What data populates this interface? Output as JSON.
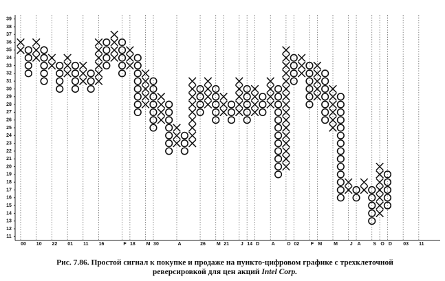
{
  "chart_data": {
    "type": "point-and-figure",
    "caption": {
      "line1": "Рис. 7.86. Простой сигнал к покупке и продаже на пункто-цифровом графике с трехклеточной",
      "line2": "реверсировкой для цен акций",
      "line2_italic": "Intel Corp."
    },
    "ylim": [
      10.5,
      39.5
    ],
    "yticks": [
      11,
      12,
      13,
      14,
      15,
      16,
      17,
      18,
      19,
      20,
      21,
      22,
      23,
      24,
      25,
      26,
      27,
      28,
      29,
      30,
      31,
      32,
      33,
      34,
      35,
      36,
      37,
      38,
      39
    ],
    "categories": [
      "00",
      null,
      "10",
      null,
      "22",
      null,
      "01",
      null,
      "11",
      null,
      "16",
      null,
      null,
      "F",
      "18",
      null,
      "M",
      "30",
      null,
      null,
      "A",
      null,
      null,
      "26",
      null,
      "M",
      "21",
      null,
      "J",
      "14",
      "D",
      null,
      "A",
      null,
      "O",
      "02",
      null,
      "F",
      "M",
      null,
      "M",
      null,
      "J",
      "A",
      null,
      "S",
      "O",
      "D",
      null,
      "03",
      null,
      "11",
      null
    ],
    "columns": [
      {
        "symbol": "X",
        "low": 35,
        "high": 36
      },
      {
        "symbol": "O",
        "low": 32,
        "high": 35
      },
      {
        "symbol": "X",
        "low": 34,
        "high": 36
      },
      {
        "symbol": "O",
        "low": 31,
        "high": 35
      },
      {
        "symbol": "X",
        "low": 33,
        "high": 34
      },
      {
        "symbol": "O",
        "low": 30,
        "high": 33
      },
      {
        "symbol": "X",
        "low": 32,
        "high": 34
      },
      {
        "symbol": "O",
        "low": 30,
        "high": 33
      },
      {
        "symbol": "X",
        "low": 31,
        "high": 33
      },
      {
        "symbol": "O",
        "low": 30,
        "high": 32
      },
      {
        "symbol": "X",
        "low": 31,
        "high": 36
      },
      {
        "symbol": "O",
        "low": 33,
        "high": 36
      },
      {
        "symbol": "X",
        "low": 34,
        "high": 37
      },
      {
        "symbol": "O",
        "low": 32,
        "high": 36
      },
      {
        "symbol": "X",
        "low": 33,
        "high": 35
      },
      {
        "symbol": "O",
        "low": 27,
        "high": 34
      },
      {
        "symbol": "X",
        "low": 28,
        "high": 32
      },
      {
        "symbol": "O",
        "low": 25,
        "high": 31
      },
      {
        "symbol": "X",
        "low": 26,
        "high": 29
      },
      {
        "symbol": "O",
        "low": 22,
        "high": 28
      },
      {
        "symbol": "X",
        "low": 23,
        "high": 25
      },
      {
        "symbol": "O",
        "low": 22,
        "high": 24
      },
      {
        "symbol": "X",
        "low": 23,
        "high": 31
      },
      {
        "symbol": "O",
        "low": 27,
        "high": 30
      },
      {
        "symbol": "X",
        "low": 28,
        "high": 31
      },
      {
        "symbol": "O",
        "low": 26,
        "high": 30
      },
      {
        "symbol": "X",
        "low": 27,
        "high": 29
      },
      {
        "symbol": "O",
        "low": 26,
        "high": 28
      },
      {
        "symbol": "X",
        "low": 27,
        "high": 31
      },
      {
        "symbol": "O",
        "low": 26,
        "high": 30
      },
      {
        "symbol": "X",
        "low": 27,
        "high": 30
      },
      {
        "symbol": "O",
        "low": 27,
        "high": 29
      },
      {
        "symbol": "X",
        "low": 28,
        "high": 31
      },
      {
        "symbol": "O",
        "low": 19,
        "high": 30
      },
      {
        "symbol": "X",
        "low": 20,
        "high": 35
      },
      {
        "symbol": "O",
        "low": 31,
        "high": 34
      },
      {
        "symbol": "X",
        "low": 32,
        "high": 34
      },
      {
        "symbol": "O",
        "low": 28,
        "high": 33
      },
      {
        "symbol": "X",
        "low": 29,
        "high": 33
      },
      {
        "symbol": "O",
        "low": 26,
        "high": 32
      },
      {
        "symbol": "X",
        "low": 25,
        "high": 30
      },
      {
        "symbol": "O",
        "low": 16,
        "high": 29
      },
      {
        "symbol": "X",
        "low": 17,
        "high": 18
      },
      {
        "symbol": "O",
        "low": 16,
        "high": 17
      },
      {
        "symbol": "X",
        "low": 17,
        "high": 18
      },
      {
        "symbol": "O",
        "low": 13,
        "high": 17
      },
      {
        "symbol": "X",
        "low": 14,
        "high": 20
      },
      {
        "symbol": "O",
        "low": 15,
        "high": 19
      },
      null,
      null,
      null,
      null,
      null
    ]
  }
}
